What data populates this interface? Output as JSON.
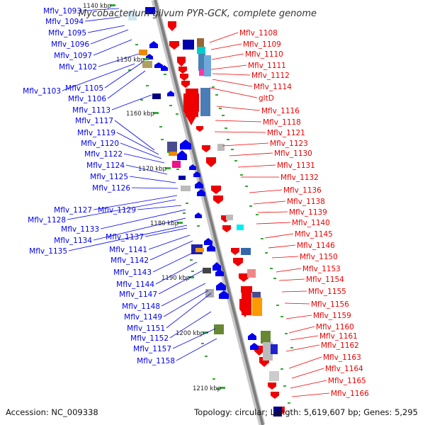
{
  "title": "Mycobacterium gilvum PYR-GCK, complete genome",
  "footer": {
    "accession": "Accession: NC_009338",
    "summary": "Topology: circular; Length: 5,619,607 bp; Genes: 5,295"
  },
  "colors": {
    "forward": "#0000ee",
    "reverse": "#ee0000",
    "backbone": "#999999",
    "tick": "#33aa33"
  },
  "ticks": [
    "1140 kbp",
    "1150 kbp",
    "1160 kbp",
    "1170 kbp",
    "1180 kbp",
    "1190 kbp",
    "1200 kbp",
    "1210 kbp"
  ],
  "left_genes": [
    "Mflv_1093",
    "Mflv_1094",
    "Mflv_1095",
    "Mflv_1096",
    "Mflv_1097",
    "Mflv_1102",
    "Mflv_1103",
    "Mflv_1105",
    "Mflv_1106",
    "Mflv_1113",
    "Mflv_1117",
    "Mflv_1119",
    "Mflv_1120",
    "Mflv_1122",
    "Mflv_1124",
    "Mflv_1125",
    "Mflv_1126",
    "Mflv_1127",
    "Mflv_1128",
    "Mflv_1129",
    "Mflv_1133",
    "Mflv_1134",
    "Mflv_1135",
    "Mflv_1137",
    "Mflv_1141",
    "Mflv_1142",
    "Mflv_1143",
    "Mflv_1144",
    "Mflv_1147",
    "Mflv_1148",
    "Mflv_1149",
    "Mflv_1151",
    "Mflv_1152",
    "Mflv_1157",
    "Mflv_1158"
  ],
  "right_genes": [
    "Mflv_1108",
    "Mflv_1109",
    "Mflv_1110",
    "Mflv_1111",
    "Mflv_1112",
    "Mflv_1114",
    "gltD",
    "Mflv_1116",
    "Mflv_1118",
    "Mflv_1121",
    "Mflv_1123",
    "Mflv_1130",
    "Mflv_1131",
    "Mflv_1132",
    "Mflv_1136",
    "Mflv_1138",
    "Mflv_1139",
    "Mflv_1140",
    "Mflv_1145",
    "Mflv_1146",
    "Mflv_1150",
    "Mflv_1153",
    "Mflv_1154",
    "Mflv_1155",
    "Mflv_1156",
    "Mflv_1159",
    "Mflv_1160",
    "Mflv_1161",
    "Mflv_1162",
    "Mflv_1163",
    "Mflv_1164",
    "Mflv_1165",
    "Mflv_1166"
  ]
}
